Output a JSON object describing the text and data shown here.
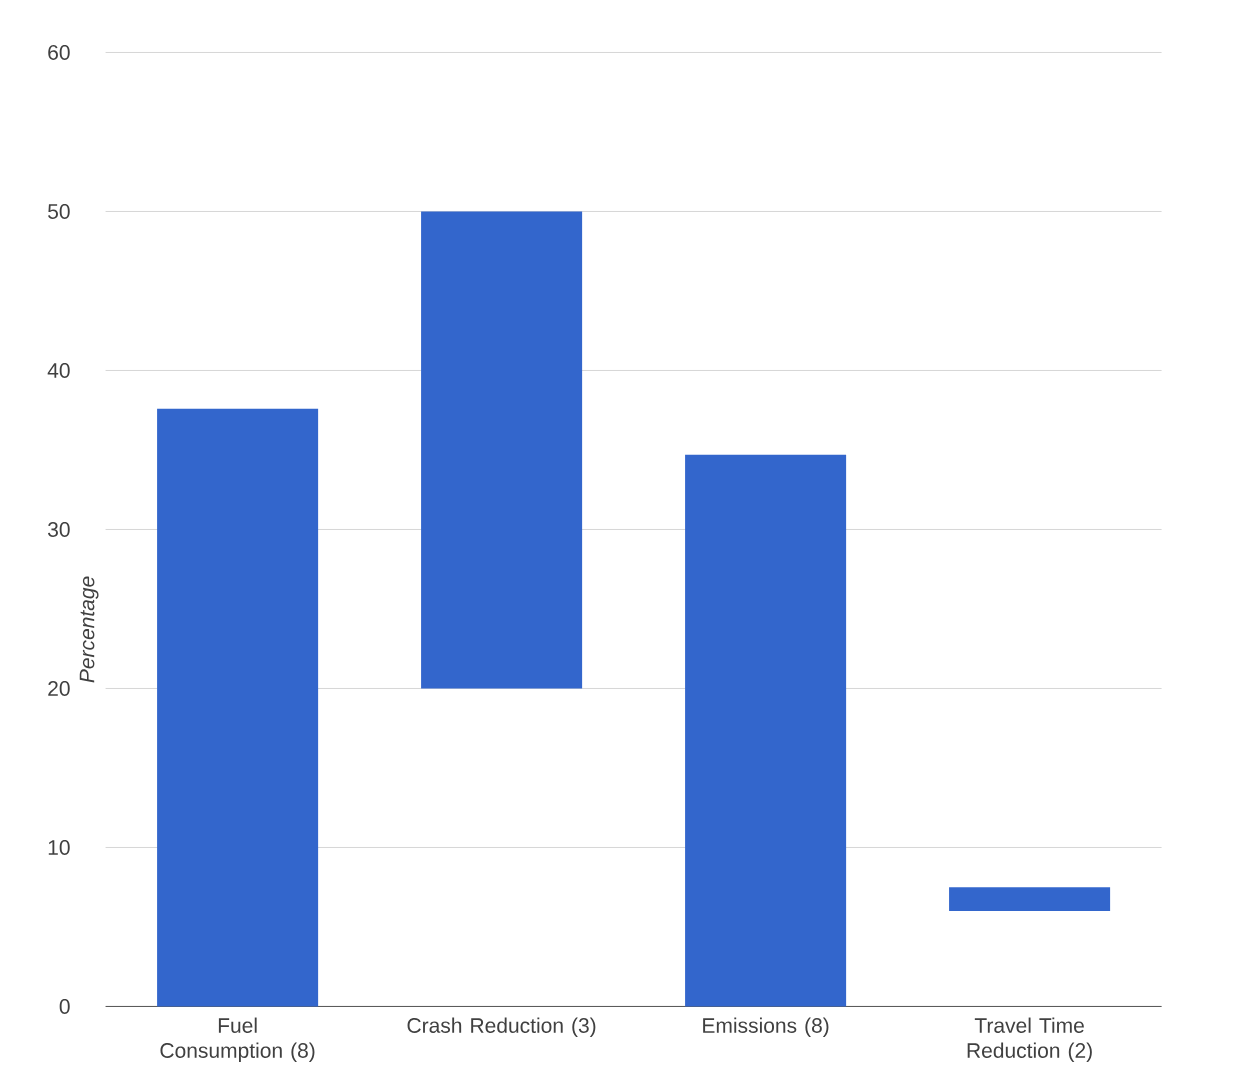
{
  "chart_data": {
    "type": "bar",
    "ylabel": "Percentage",
    "categories": [
      "Fuel Consumption (8)",
      "Crash Reduction (3)",
      "Emissions (8)",
      "Travel Time Reduction (2)"
    ],
    "base": [
      0,
      20,
      0,
      6
    ],
    "values": [
      37.6,
      30,
      34.7,
      1.5
    ],
    "color": "#3366cc",
    "ylim": [
      0,
      60
    ],
    "yticks": [
      0,
      10,
      20,
      30,
      40,
      50,
      60
    ],
    "grid": "y"
  }
}
